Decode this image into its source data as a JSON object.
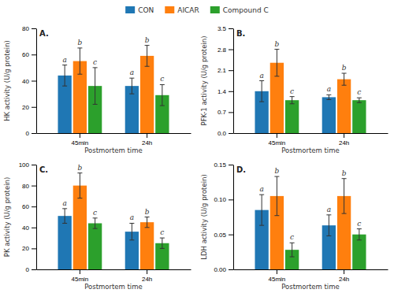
{
  "chart_data": [
    {
      "type": "bar",
      "title": "A.",
      "xlabel": "Postmortem time",
      "ylabel": "HK activity (U/g protein)",
      "categories": [
        "45min",
        "24h"
      ],
      "series": [
        {
          "name": "CON",
          "values": [
            44,
            36
          ],
          "errors": [
            8,
            6
          ],
          "annotations": [
            "a",
            "a"
          ]
        },
        {
          "name": "AICAR",
          "values": [
            55,
            59
          ],
          "errors": [
            10,
            8
          ],
          "annotations": [
            "b",
            "b"
          ]
        },
        {
          "name": "Compound C",
          "values": [
            36,
            29
          ],
          "errors": [
            14,
            8
          ],
          "annotations": [
            "c",
            "c"
          ]
        }
      ],
      "ylim": [
        0,
        80
      ],
      "yticks": [
        0,
        20,
        40,
        60,
        80
      ],
      "grid": false,
      "legend": "top"
    },
    {
      "type": "bar",
      "title": "B.",
      "xlabel": "Postmortem time",
      "ylabel": "PFK-1 activity (U/g protein)",
      "categories": [
        "45min",
        "24h"
      ],
      "series": [
        {
          "name": "CON",
          "values": [
            1.4,
            1.2
          ],
          "errors": [
            0.35,
            0.08
          ],
          "annotations": [
            "a",
            "a"
          ]
        },
        {
          "name": "AICAR",
          "values": [
            2.35,
            1.8
          ],
          "errors": [
            0.45,
            0.2
          ],
          "annotations": [
            "b",
            "b"
          ]
        },
        {
          "name": "Compound C",
          "values": [
            1.1,
            1.1
          ],
          "errors": [
            0.12,
            0.08
          ],
          "annotations": [
            "c",
            "c"
          ]
        }
      ],
      "ylim": [
        0.0,
        3.5
      ],
      "yticks": [
        {
          "value": 0.0,
          "label": "0.0"
        },
        0.7,
        1.4,
        2.1,
        2.8,
        3.5
      ],
      "grid": false
    },
    {
      "type": "bar",
      "title": "C.",
      "xlabel": "Postmortem time",
      "ylabel": "PK activity (U/g protein)",
      "categories": [
        "45min",
        "24h"
      ],
      "series": [
        {
          "name": "CON",
          "values": [
            51,
            36
          ],
          "errors": [
            7,
            8
          ],
          "annotations": [
            "a",
            "a"
          ]
        },
        {
          "name": "AICAR",
          "values": [
            80,
            45
          ],
          "errors": [
            12,
            5
          ],
          "annotations": [
            "b",
            "b"
          ]
        },
        {
          "name": "Compound C",
          "values": [
            44,
            25
          ],
          "errors": [
            5,
            5
          ],
          "annotations": [
            "c",
            "c"
          ]
        }
      ],
      "ylim": [
        0,
        100
      ],
      "yticks": [
        0,
        20,
        40,
        60,
        80,
        100
      ],
      "grid": false
    },
    {
      "type": "bar",
      "title": "D.",
      "xlabel": "Postmortem time",
      "ylabel": "LDH activity (U/g protein)",
      "categories": [
        "45min",
        "24h"
      ],
      "series": [
        {
          "name": "CON",
          "values": [
            0.085,
            0.063
          ],
          "errors": [
            0.022,
            0.015
          ],
          "annotations": [
            "a",
            "a"
          ]
        },
        {
          "name": "AICAR",
          "values": [
            0.105,
            0.105
          ],
          "errors": [
            0.028,
            0.025
          ],
          "annotations": [
            "b",
            "b"
          ]
        },
        {
          "name": "Compound C",
          "values": [
            0.028,
            0.05
          ],
          "errors": [
            0.01,
            0.008
          ],
          "annotations": [
            "c",
            "c"
          ]
        }
      ],
      "ylim": [
        0.0,
        0.15
      ],
      "yticks": [
        {
          "value": 0.0,
          "label": "0.00"
        },
        0.05,
        {
          "value": 0.1,
          "label": "0.10"
        },
        0.15
      ],
      "grid": false
    }
  ]
}
